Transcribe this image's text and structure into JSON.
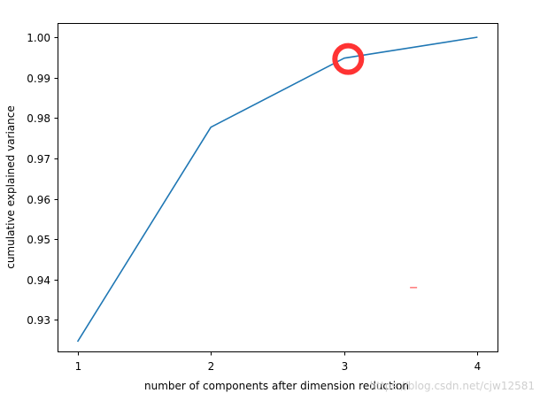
{
  "chart_data": {
    "type": "line",
    "title": "",
    "xlabel": "number of components after dimension reduction",
    "ylabel": "cumulative explained variance",
    "x": [
      1,
      2,
      3,
      4
    ],
    "series": [
      {
        "values": [
          0.9246,
          0.9777,
          0.9948,
          1.0
        ]
      }
    ],
    "xlim": [
      0.85,
      4.15
    ],
    "ylim": [
      0.9222,
      1.0035
    ],
    "xticks": [
      1,
      2,
      3,
      4
    ],
    "xtick_labels": [
      "1",
      "2",
      "3",
      "4"
    ],
    "yticks": [
      0.93,
      0.94,
      0.95,
      0.96,
      0.97,
      0.98,
      0.99,
      1.0
    ],
    "ytick_labels": [
      "0.93",
      "0.94",
      "0.95",
      "0.96",
      "0.97",
      "0.98",
      "0.99",
      "1.00"
    ],
    "grid": false,
    "legend": "none",
    "annotations": [
      {
        "kind": "circle-marker",
        "x": 3.03,
        "y": 0.9946
      },
      {
        "kind": "dash-mark",
        "x": 3.52,
        "y": 0.938
      }
    ],
    "watermark": "https://blog.csdn.net/cjw12581"
  },
  "colors": {
    "line": "#1f77b4",
    "highlight": "#ff3333",
    "axes": "#000000",
    "watermark": "#cfcfcf"
  }
}
